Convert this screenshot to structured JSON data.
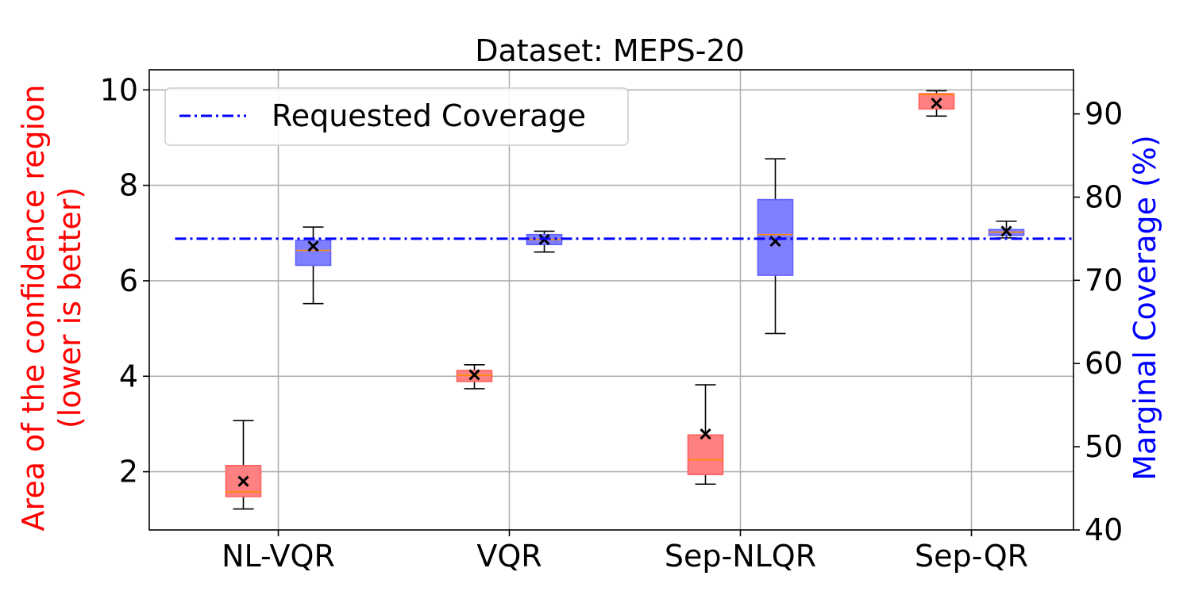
{
  "chart_data": {
    "type": "box",
    "title": "Dataset: MEPS-20",
    "categories": [
      "NL-VQR",
      "VQR",
      "Sep-NLQR",
      "Sep-QR"
    ],
    "left_axis": {
      "label_line1": "Area of the confidence region",
      "label_line2": "(lower is better)",
      "color": "#ff0000",
      "ylim": [
        0.78,
        10.42
      ],
      "ticks": [
        2,
        4,
        6,
        8,
        10
      ],
      "tick_labels": [
        "2",
        "4",
        "6",
        "8",
        "10"
      ]
    },
    "right_axis": {
      "label": "Marginal Coverage (%)",
      "color": "#0000ff",
      "ylim": [
        40,
        95.3
      ],
      "ticks": [
        40,
        50,
        60,
        70,
        80,
        90
      ],
      "tick_labels": [
        "40",
        "50",
        "60",
        "70",
        "80",
        "90"
      ]
    },
    "requested_coverage": 75,
    "legend": {
      "label": "Requested Coverage",
      "placement": "upper-left"
    },
    "area_series": {
      "name": "Area of the confidence region",
      "fill": "#ff8080",
      "edge": "#ff6060",
      "boxes": [
        {
          "min": 1.22,
          "q1": 1.48,
          "median": 1.58,
          "q3": 2.13,
          "max": 3.07,
          "mean": 1.8
        },
        {
          "min": 3.74,
          "q1": 3.89,
          "median": 4.02,
          "q3": 4.12,
          "max": 4.24,
          "mean": 4.03
        },
        {
          "min": 1.74,
          "q1": 1.94,
          "median": 2.25,
          "q3": 2.77,
          "max": 3.82,
          "mean": 2.79
        },
        {
          "min": 9.45,
          "q1": 9.6,
          "median": 9.9,
          "q3": 9.92,
          "max": 9.98,
          "mean": 9.72
        }
      ]
    },
    "coverage_series": {
      "name": "Marginal Coverage (%)",
      "fill": "#8080ff",
      "edge": "#6060ff",
      "boxes": [
        {
          "min": 67.2,
          "q1": 71.8,
          "median": 73.6,
          "q3": 74.8,
          "max": 76.4,
          "mean": 74.1
        },
        {
          "min": 73.4,
          "q1": 74.3,
          "median": 74.9,
          "q3": 75.5,
          "max": 75.9,
          "mean": 74.9
        },
        {
          "min": 63.6,
          "q1": 70.6,
          "median": 75.5,
          "q3": 79.7,
          "max": 84.6,
          "mean": 74.7
        },
        {
          "min": 75.1,
          "q1": 75.4,
          "median": 75.8,
          "q3": 76.1,
          "max": 77.1,
          "mean": 75.9
        }
      ]
    },
    "median_color": "#ff8c00",
    "grid": true
  }
}
